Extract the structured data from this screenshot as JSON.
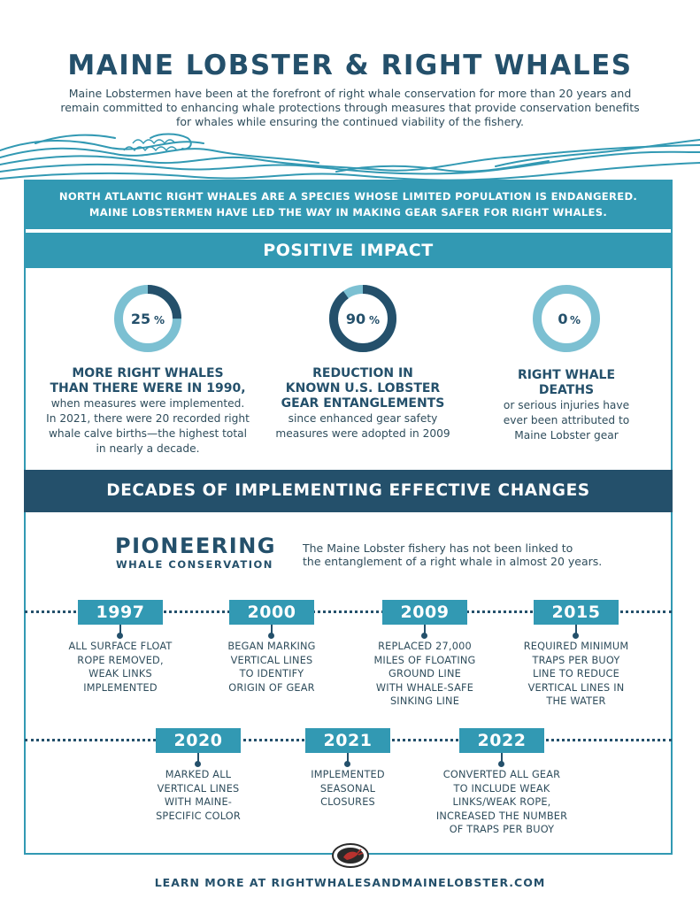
{
  "header": {
    "title": "MAINE LOBSTER & RIGHT WHALES",
    "intro": "Maine Lobstermen have been at the forefront of right whale conservation for more than 20 years and remain committed to enhancing whale protections through measures that provide conservation benefits for whales while ensuring the continued viability of the fishery."
  },
  "banner": {
    "line1": "NORTH ATLANTIC RIGHT WHALES ARE A SPECIES WHOSE LIMITED POPULATION IS ENDANGERED.",
    "line2": "MAINE LOBSTERMEN HAVE LED THE WAY IN MAKING GEAR SAFER FOR RIGHT WHALES."
  },
  "positive_impact": {
    "heading": "POSITIVE IMPACT",
    "stats": [
      {
        "value": "25",
        "unit": "%",
        "percent": 25,
        "head_lines": [
          "MORE RIGHT WHALES",
          "THAN THERE WERE IN 1990,"
        ],
        "body_lines": [
          "when measures were implemented.",
          "In 2021, there were 20 recorded right",
          "whale calve births—the highest total",
          "in nearly a decade."
        ]
      },
      {
        "value": "90",
        "unit": "%",
        "percent": 90,
        "head_lines": [
          "REDUCTION IN",
          "KNOWN U.S. LOBSTER",
          "GEAR ENTANGLEMENTS"
        ],
        "body_lines": [
          "since enhanced gear safety",
          "measures were adopted in 2009"
        ]
      },
      {
        "value": "0",
        "unit": "%",
        "percent": 0,
        "head_lines": [
          "RIGHT WHALE",
          "DEATHS"
        ],
        "body_lines": [
          "or serious injuries have",
          "ever been attributed to",
          "Maine Lobster gear"
        ]
      }
    ]
  },
  "decades": {
    "heading": "DECADES OF IMPLEMENTING EFFECTIVE CHANGES",
    "pioneer_big": "PIONEERING",
    "pioneer_small": "WHALE CONSERVATION",
    "pioneer_desc_lines": [
      "The Maine Lobster fishery has not been linked to",
      "the entanglement of a right whale in almost 20 years."
    ],
    "timeline": [
      {
        "year": "1997",
        "lines": [
          "ALL SURFACE FLOAT",
          "ROPE REMOVED,",
          "WEAK LINKS",
          "IMPLEMENTED"
        ]
      },
      {
        "year": "2000",
        "lines": [
          "BEGAN MARKING",
          "VERTICAL LINES",
          "TO IDENTIFY",
          "ORIGIN OF GEAR"
        ]
      },
      {
        "year": "2009",
        "lines": [
          "REPLACED 27,000",
          "MILES OF FLOATING",
          "GROUND LINE",
          "WITH WHALE-SAFE",
          "SINKING LINE"
        ]
      },
      {
        "year": "2015",
        "lines": [
          "REQUIRED MINIMUM",
          "TRAPS PER BUOY",
          "LINE TO REDUCE",
          "VERTICAL LINES IN",
          "THE WATER"
        ]
      },
      {
        "year": "2020",
        "lines": [
          "MARKED ALL",
          "VERTICAL LINES",
          "WITH MAINE-",
          "SPECIFIC COLOR"
        ]
      },
      {
        "year": "2021",
        "lines": [
          "IMPLEMENTED",
          "SEASONAL",
          "CLOSURES"
        ]
      },
      {
        "year": "2022",
        "lines": [
          "CONVERTED ALL GEAR",
          "TO INCLUDE WEAK",
          "LINKS/WEAK ROPE,",
          "INCREASED THE NUMBER",
          "OF TRAPS PER BUOY"
        ]
      }
    ]
  },
  "footer": {
    "text": "LEARN MORE AT RIGHTWHALESANDMAINELOBSTER.COM"
  },
  "colors": {
    "navy": "#24506b",
    "teal": "#3299b3",
    "light_teal": "#7cc0d2"
  }
}
